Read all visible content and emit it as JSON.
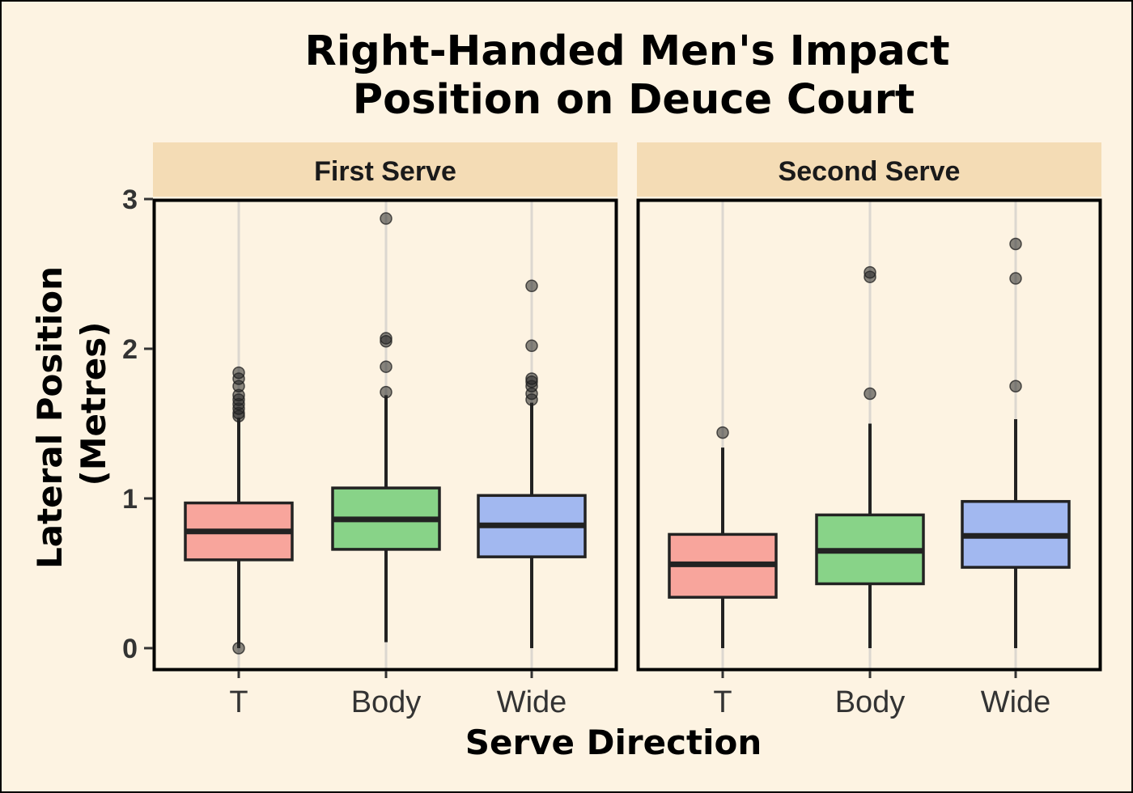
{
  "chart_data": {
    "type": "boxplot",
    "title_lines": [
      "Right-Handed Men's Impact",
      "Position on Deuce Court"
    ],
    "xlabel": "Serve Direction",
    "ylabel_lines": [
      "Lateral Position",
      "(Metres)"
    ],
    "ylim": [
      -0.14,
      3.0
    ],
    "y_ticks": [
      0,
      1,
      2,
      3
    ],
    "y_tick_labels": [
      "0",
      "1",
      "2",
      "3"
    ],
    "categories": [
      "T",
      "Body",
      "Wide"
    ],
    "colors": {
      "T": "#f8a59c",
      "Body": "#88d388",
      "Wide": "#a2b8f0"
    },
    "background": "#fdf3e2",
    "strip_fill": "#f4dcb5",
    "grid": "vertical-major",
    "panels": [
      {
        "strip": "First Serve",
        "boxes": [
          {
            "category": "T",
            "q1": 0.59,
            "median": 0.78,
            "q3": 0.97,
            "whisker_low": 0.0,
            "whisker_high": 1.54,
            "outliers": [
              0.0,
              1.55,
              1.57,
              1.6,
              1.63,
              1.66,
              1.69,
              1.75,
              1.8,
              1.84
            ]
          },
          {
            "category": "Body",
            "q1": 0.66,
            "median": 0.86,
            "q3": 1.07,
            "whisker_low": 0.04,
            "whisker_high": 1.69,
            "outliers": [
              1.71,
              1.88,
              2.05,
              2.07,
              2.87
            ]
          },
          {
            "category": "Wide",
            "q1": 0.61,
            "median": 0.82,
            "q3": 1.02,
            "whisker_low": 0.0,
            "whisker_high": 1.64,
            "outliers": [
              1.66,
              1.7,
              1.75,
              1.78,
              1.8,
              2.02,
              2.42
            ]
          }
        ]
      },
      {
        "strip": "Second Serve",
        "boxes": [
          {
            "category": "T",
            "q1": 0.34,
            "median": 0.56,
            "q3": 0.76,
            "whisker_low": 0.0,
            "whisker_high": 1.34,
            "outliers": [
              1.44
            ]
          },
          {
            "category": "Body",
            "q1": 0.43,
            "median": 0.65,
            "q3": 0.89,
            "whisker_low": 0.0,
            "whisker_high": 1.5,
            "outliers": [
              1.7,
              2.48,
              2.51
            ]
          },
          {
            "category": "Wide",
            "q1": 0.54,
            "median": 0.75,
            "q3": 0.98,
            "whisker_low": 0.0,
            "whisker_high": 1.53,
            "outliers": [
              1.75,
              2.47,
              2.7
            ]
          }
        ]
      }
    ]
  }
}
